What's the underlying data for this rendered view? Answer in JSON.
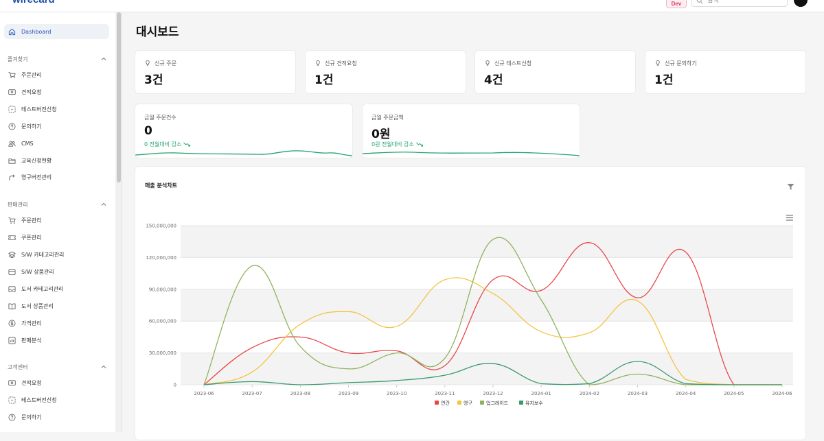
{
  "header": {
    "logo": "wirecard",
    "env_badge": "Dev",
    "search_placeholder": "검색"
  },
  "sidebar": {
    "dashboard": "Dashboard",
    "sections": [
      {
        "title": "즐겨찾기",
        "items": [
          {
            "label": "주문관리",
            "icon": "cart-icon"
          },
          {
            "label": "견적요청",
            "icon": "monitor-icon"
          },
          {
            "label": "테스트버전신청",
            "icon": "dashed-box-icon"
          },
          {
            "label": "문의하기",
            "icon": "help-circle-icon"
          },
          {
            "label": "CMS",
            "icon": "users-icon"
          },
          {
            "label": "교육신청현황",
            "icon": "folder-icon"
          },
          {
            "label": "영구버전관리",
            "icon": "share-icon"
          }
        ]
      },
      {
        "title": "판매관리",
        "items": [
          {
            "label": "주문관리",
            "icon": "cart-icon"
          },
          {
            "label": "쿠폰관리",
            "icon": "ticket-icon"
          },
          {
            "label": "S/W 카테고리관리",
            "icon": "layers-icon"
          },
          {
            "label": "S/W 상품관리",
            "icon": "box-icon"
          },
          {
            "label": "도서 카테고리관리",
            "icon": "inbox-icon"
          },
          {
            "label": "도서 상품관리",
            "icon": "book-icon"
          },
          {
            "label": "가격관리",
            "icon": "dollar-icon"
          },
          {
            "label": "판매분석",
            "icon": "bar-chart-icon"
          }
        ]
      },
      {
        "title": "고객센터",
        "items": [
          {
            "label": "견적요청",
            "icon": "monitor-icon"
          },
          {
            "label": "테스트버전신청",
            "icon": "dashed-box-icon"
          },
          {
            "label": "문의하기",
            "icon": "help-circle-icon"
          }
        ]
      }
    ]
  },
  "main": {
    "title": "대시보드",
    "stats": [
      {
        "label": "신규 주문",
        "value": "3건"
      },
      {
        "label": "신규 견적요청",
        "value": "1건"
      },
      {
        "label": "신규 테스트신청",
        "value": "4건"
      },
      {
        "label": "신규 문의하기",
        "value": "1건"
      }
    ],
    "monthly": [
      {
        "label": "금월 주문건수",
        "value": "0",
        "delta": "0 전월대비 감소"
      },
      {
        "label": "금월 주문금액",
        "value": "0원",
        "delta": "0원 전월대비 감소"
      }
    ],
    "chart_title": "매출 분석차트"
  },
  "colors": {
    "accent": "#2456b8",
    "positive": "#1fa36c",
    "series": [
      "#e8474a",
      "#f5c342",
      "#8fb35c",
      "#3a9a6c"
    ]
  },
  "chart_data": {
    "type": "line",
    "title": "매출 분석차트",
    "x": [
      "2023-06",
      "2023-07",
      "2023-08",
      "2023-09",
      "2023-10",
      "2023-11",
      "2023-12",
      "2024-01",
      "2024-02",
      "2024-03",
      "2024-04",
      "2024-05",
      "2024-06"
    ],
    "y_ticks": [
      "0",
      "30,000,000",
      "60,000,000",
      "90,000,000",
      "120,000,000",
      "150,000,000"
    ],
    "ylim": [
      0,
      150000000
    ],
    "grid": true,
    "legend_position": "bottom",
    "series": [
      {
        "name": "연간",
        "color": "#e8474a",
        "values": [
          0,
          35000000,
          45000000,
          30000000,
          32000000,
          18000000,
          99000000,
          89000000,
          134000000,
          82000000,
          125000000,
          0,
          0
        ]
      },
      {
        "name": "영구",
        "color": "#f5c342",
        "values": [
          0,
          12000000,
          57000000,
          69000000,
          55000000,
          99000000,
          86000000,
          50000000,
          49000000,
          79000000,
          5000000,
          0,
          0
        ]
      },
      {
        "name": "업그레이드",
        "color": "#8fb35c",
        "values": [
          0,
          112000000,
          36000000,
          15000000,
          30000000,
          25000000,
          137000000,
          80000000,
          0,
          10000000,
          0,
          0,
          0
        ]
      },
      {
        "name": "유지보수",
        "color": "#3a9a6c",
        "values": [
          0,
          3000000,
          0,
          2000000,
          4000000,
          9000000,
          20000000,
          1000000,
          1000000,
          22000000,
          1000000,
          0,
          0
        ]
      }
    ]
  }
}
